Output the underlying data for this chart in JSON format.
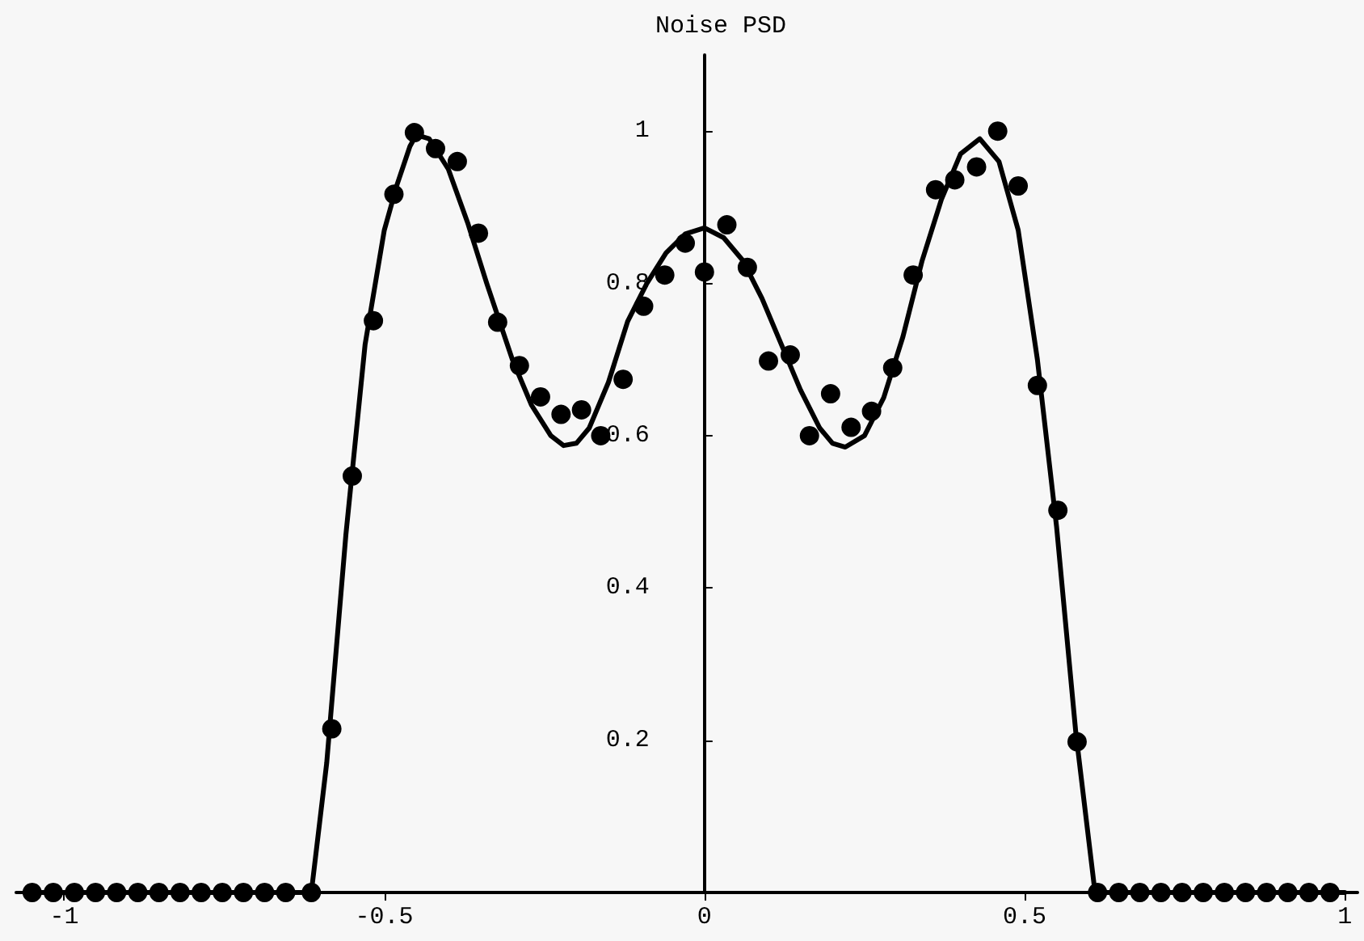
{
  "chart_data": {
    "type": "scatter",
    "title": "Noise PSD",
    "xlim": [
      -1.075,
      1.02
    ],
    "ylim": [
      0,
      1.1
    ],
    "xticks": [
      -1,
      -0.5,
      0,
      0.5,
      1
    ],
    "yticks": [
      0.2,
      0.4,
      0.6,
      0.8,
      1
    ],
    "series": [
      {
        "marker": "circle",
        "color": "#000000",
        "x": [
          -1.05,
          -1.017,
          -0.984,
          -0.951,
          -0.918,
          -0.885,
          -0.852,
          -0.819,
          -0.786,
          -0.753,
          -0.72,
          -0.687,
          -0.654,
          -0.614,
          -0.582,
          -0.55,
          -0.517,
          -0.485,
          -0.453,
          -0.42,
          -0.386,
          -0.353,
          -0.323,
          -0.289,
          -0.256,
          -0.224,
          -0.192,
          -0.162,
          -0.127,
          -0.095,
          -0.062,
          -0.03,
          0,
          0.035,
          0.067,
          0.1,
          0.134,
          0.164,
          0.197,
          0.229,
          0.261,
          0.294,
          0.326,
          0.361,
          0.391,
          0.425,
          0.458,
          0.49,
          0.52,
          0.552,
          0.582,
          0.614,
          0.647,
          0.68,
          0.713,
          0.746,
          0.779,
          0.812,
          0.845,
          0.878,
          0.911,
          0.944,
          0.977
        ],
        "values": [
          0,
          0,
          0,
          0,
          0,
          0,
          0,
          0,
          0,
          0,
          0,
          0,
          0,
          0,
          0.215,
          0.547,
          0.751,
          0.917,
          0.998,
          0.977,
          0.96,
          0.866,
          0.749,
          0.692,
          0.651,
          0.628,
          0.634,
          0.6,
          0.674,
          0.77,
          0.811,
          0.853,
          0.815,
          0.877,
          0.821,
          0.698,
          0.706,
          0.6,
          0.655,
          0.611,
          0.632,
          0.689,
          0.811,
          0.923,
          0.936,
          0.953,
          1.0,
          0.928,
          0.666,
          0.502,
          0.198,
          0,
          0,
          0,
          0,
          0,
          0,
          0,
          0,
          0,
          0,
          0,
          0
        ]
      },
      {
        "type": "line",
        "marker": "none",
        "line_style": "solid",
        "color": "#000000",
        "x": [
          -1.05,
          -0.614,
          -0.59,
          -0.56,
          -0.53,
          -0.5,
          -0.48,
          -0.46,
          -0.45,
          -0.43,
          -0.4,
          -0.37,
          -0.34,
          -0.3,
          -0.27,
          -0.24,
          -0.22,
          -0.2,
          -0.18,
          -0.15,
          -0.12,
          -0.09,
          -0.06,
          -0.03,
          0,
          0.03,
          0.06,
          0.09,
          0.12,
          0.15,
          0.18,
          0.2,
          0.22,
          0.25,
          0.28,
          0.31,
          0.34,
          0.37,
          0.4,
          0.43,
          0.46,
          0.49,
          0.52,
          0.55,
          0.58,
          0.61,
          1.0
        ],
        "values": [
          0,
          0,
          0.17,
          0.47,
          0.72,
          0.87,
          0.93,
          0.98,
          0.995,
          0.99,
          0.95,
          0.88,
          0.8,
          0.7,
          0.64,
          0.6,
          0.587,
          0.59,
          0.61,
          0.67,
          0.75,
          0.8,
          0.84,
          0.865,
          0.873,
          0.86,
          0.83,
          0.78,
          0.72,
          0.66,
          0.61,
          0.59,
          0.585,
          0.6,
          0.65,
          0.73,
          0.83,
          0.91,
          0.97,
          0.99,
          0.96,
          0.87,
          0.7,
          0.48,
          0.21,
          0,
          0
        ]
      }
    ]
  }
}
